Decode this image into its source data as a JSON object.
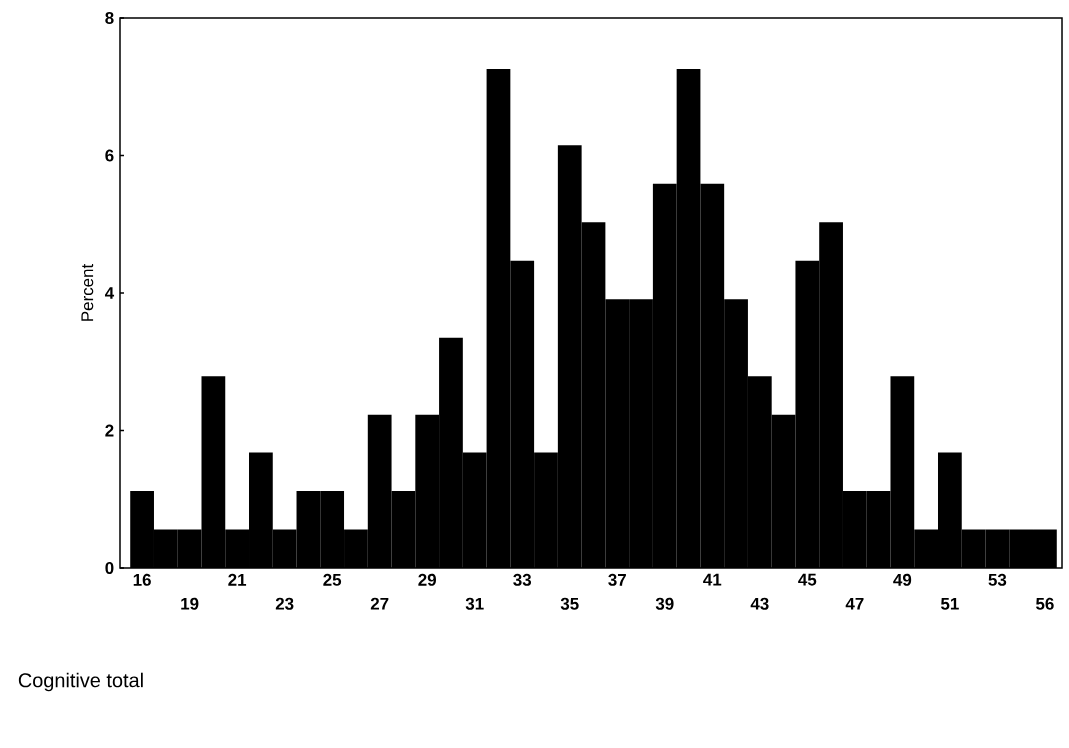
{
  "chart_data": {
    "type": "bar",
    "xlabel": "Cognitive total",
    "ylabel": "Percent",
    "categories": [
      "16",
      null,
      "19",
      null,
      "21",
      null,
      "23",
      null,
      "25",
      null,
      "27",
      null,
      "29",
      null,
      "31",
      null,
      "33",
      null,
      "35",
      null,
      "37",
      null,
      "39",
      null,
      "41",
      null,
      "43",
      null,
      "45",
      null,
      "47",
      null,
      "49",
      null,
      "51",
      null,
      "53",
      null,
      "56"
    ],
    "values": [
      1.12,
      0.56,
      0.56,
      2.79,
      0.56,
      1.68,
      0.56,
      1.12,
      1.12,
      0.56,
      2.23,
      1.12,
      2.23,
      3.35,
      1.68,
      7.26,
      4.47,
      1.68,
      6.15,
      5.03,
      3.91,
      3.91,
      5.59,
      7.26,
      5.59,
      3.91,
      2.79,
      2.23,
      4.47,
      5.03,
      1.12,
      1.12,
      2.79,
      0.56,
      1.68,
      0.56,
      0.56,
      0.56,
      0.56
    ],
    "color": "#000000",
    "ylim": [
      0,
      8
    ],
    "yticks": [
      0,
      2,
      4,
      6,
      8
    ],
    "grid": false
  }
}
